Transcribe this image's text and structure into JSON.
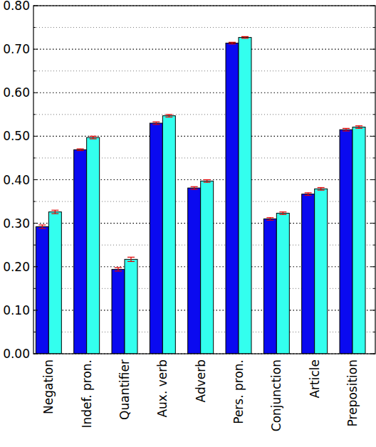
{
  "chart_data": {
    "type": "bar",
    "categories": [
      "Negation",
      "Indef. pron.",
      "Quantifier",
      "Aux. verb",
      "Adverb",
      "Pers. pron.",
      "Conjunction",
      "Article",
      "Preposition"
    ],
    "series": [
      {
        "color": "#0a0af0",
        "values": [
          0.292,
          0.469,
          0.194,
          0.53,
          0.381,
          0.714,
          0.31,
          0.367,
          0.515
        ],
        "errors": [
          0.004,
          0.002,
          0.004,
          0.003,
          0.003,
          0.002,
          0.003,
          0.003,
          0.003
        ]
      },
      {
        "color": "#33ffee",
        "values": [
          0.326,
          0.497,
          0.217,
          0.547,
          0.397,
          0.727,
          0.323,
          0.379,
          0.521
        ],
        "errors": [
          0.004,
          0.003,
          0.005,
          0.003,
          0.003,
          0.002,
          0.003,
          0.003,
          0.003
        ]
      }
    ],
    "ylim": [
      0,
      0.8
    ],
    "yticks": [
      {
        "value": 0,
        "label": "0.00"
      },
      {
        "value": 0.1,
        "label": "0.10"
      },
      {
        "value": 0.2,
        "label": "0.20"
      },
      {
        "value": 0.3,
        "label": "0.30"
      },
      {
        "value": 0.4,
        "label": "0.40"
      },
      {
        "value": 0.5,
        "label": "0.50"
      },
      {
        "value": 0.6,
        "label": "0.60"
      },
      {
        "value": 0.7,
        "label": "0.70"
      },
      {
        "value": 0.8,
        "label": "0.80"
      }
    ],
    "minor_yticks": [
      0.05,
      0.15,
      0.25,
      0.35,
      0.45,
      0.55,
      0.65,
      0.75
    ],
    "grid": true
  }
}
